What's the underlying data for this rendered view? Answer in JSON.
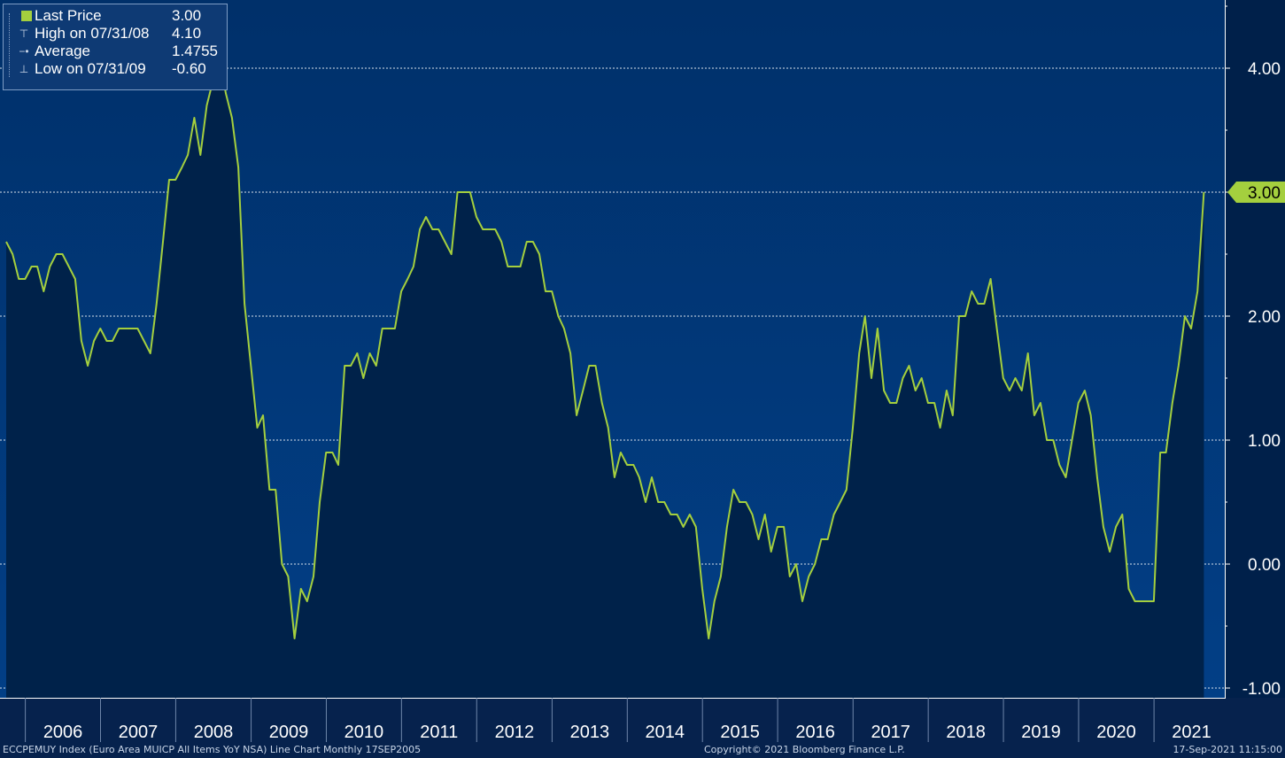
{
  "legend": {
    "last_price_label": "Last Price",
    "last_price_value": "3.00",
    "high_label": "High on 07/31/08",
    "high_value": "4.10",
    "average_label": "Average",
    "average_value": "1.4755",
    "low_label": "Low on 07/31/09",
    "low_value": "-0.60"
  },
  "footer": {
    "left": "ECCPEMUY Index (Euro Area MUICP All Items YoY NSA) Line Chart  Monthly 17SEP2005",
    "center": "Copyright© 2021 Bloomberg Finance L.P.",
    "right": "17-Sep-2021 11:15:00"
  },
  "colors": {
    "line": "#a4cf3e",
    "fill": "#00224a",
    "bg_top": "#00306a",
    "bg_bottom": "#023f86",
    "last_price_tag": "#a4cf3e"
  },
  "chart_data": {
    "type": "area",
    "title": "",
    "xlabel": "",
    "ylabel": "",
    "ylim": [
      -1.0,
      4.5
    ],
    "yticks": [
      {
        "value": 4.0,
        "label": "4.00"
      },
      {
        "value": 3.0,
        "label": "3.00"
      },
      {
        "value": 2.0,
        "label": "2.00"
      },
      {
        "value": 1.0,
        "label": "1.00"
      },
      {
        "value": 0.0,
        "label": "0.00"
      },
      {
        "value": -1.0,
        "label": "-1.00"
      }
    ],
    "xlim": [
      "2005-08-31",
      "2021-12-31"
    ],
    "x_tick_labels": [
      "2006",
      "2007",
      "2008",
      "2009",
      "2010",
      "2011",
      "2012",
      "2013",
      "2014",
      "2015",
      "2016",
      "2017",
      "2018",
      "2019",
      "2020",
      "2021"
    ],
    "year_boundaries": [
      "2006-01-01",
      "2007-01-01",
      "2008-01-01",
      "2009-01-01",
      "2010-01-01",
      "2011-01-01",
      "2012-01-01",
      "2013-01-01",
      "2014-01-01",
      "2015-01-01",
      "2016-01-01",
      "2017-01-01",
      "2018-01-01",
      "2019-01-01",
      "2020-01-01",
      "2021-01-01",
      "2022-01-01"
    ],
    "grid": true,
    "last_price_marker": {
      "value": 3.0,
      "label": "3.00"
    },
    "series": [
      {
        "name": "Last Price",
        "start": "2005-09",
        "frequency": "monthly",
        "values": [
          2.6,
          2.5,
          2.3,
          2.3,
          2.4,
          2.4,
          2.2,
          2.4,
          2.5,
          2.5,
          2.4,
          2.3,
          1.8,
          1.6,
          1.8,
          1.9,
          1.8,
          1.8,
          1.9,
          1.9,
          1.9,
          1.9,
          1.8,
          1.7,
          2.1,
          2.6,
          3.1,
          3.1,
          3.2,
          3.3,
          3.6,
          3.3,
          3.7,
          3.9,
          4.1,
          3.8,
          3.6,
          3.2,
          2.1,
          1.6,
          1.1,
          1.2,
          0.6,
          0.6,
          0.0,
          -0.1,
          -0.6,
          -0.2,
          -0.3,
          -0.1,
          0.5,
          0.9,
          0.9,
          0.8,
          1.6,
          1.6,
          1.7,
          1.5,
          1.7,
          1.6,
          1.9,
          1.9,
          1.9,
          2.2,
          2.3,
          2.4,
          2.7,
          2.8,
          2.7,
          2.7,
          2.6,
          2.5,
          3.0,
          3.0,
          3.0,
          2.8,
          2.7,
          2.7,
          2.7,
          2.6,
          2.4,
          2.4,
          2.4,
          2.6,
          2.6,
          2.5,
          2.2,
          2.2,
          2.0,
          1.9,
          1.7,
          1.2,
          1.4,
          1.6,
          1.6,
          1.3,
          1.1,
          0.7,
          0.9,
          0.8,
          0.8,
          0.7,
          0.5,
          0.7,
          0.5,
          0.5,
          0.4,
          0.4,
          0.3,
          0.4,
          0.3,
          -0.2,
          -0.6,
          -0.3,
          -0.1,
          0.3,
          0.6,
          0.5,
          0.5,
          0.4,
          0.2,
          0.4,
          0.1,
          0.3,
          0.3,
          -0.1,
          0.0,
          -0.3,
          -0.1,
          0.0,
          0.2,
          0.2,
          0.4,
          0.5,
          0.6,
          1.1,
          1.7,
          2.0,
          1.5,
          1.9,
          1.4,
          1.3,
          1.3,
          1.5,
          1.6,
          1.4,
          1.5,
          1.3,
          1.3,
          1.1,
          1.4,
          1.2,
          2.0,
          2.0,
          2.2,
          2.1,
          2.1,
          2.3,
          1.9,
          1.5,
          1.4,
          1.5,
          1.4,
          1.7,
          1.2,
          1.3,
          1.0,
          1.0,
          0.8,
          0.7,
          1.0,
          1.3,
          1.4,
          1.2,
          0.7,
          0.3,
          0.1,
          0.3,
          0.4,
          -0.2,
          -0.3,
          -0.3,
          -0.3,
          -0.3,
          0.9,
          0.9,
          1.3,
          1.6,
          2.0,
          1.9,
          2.2,
          3.0
        ]
      }
    ]
  }
}
